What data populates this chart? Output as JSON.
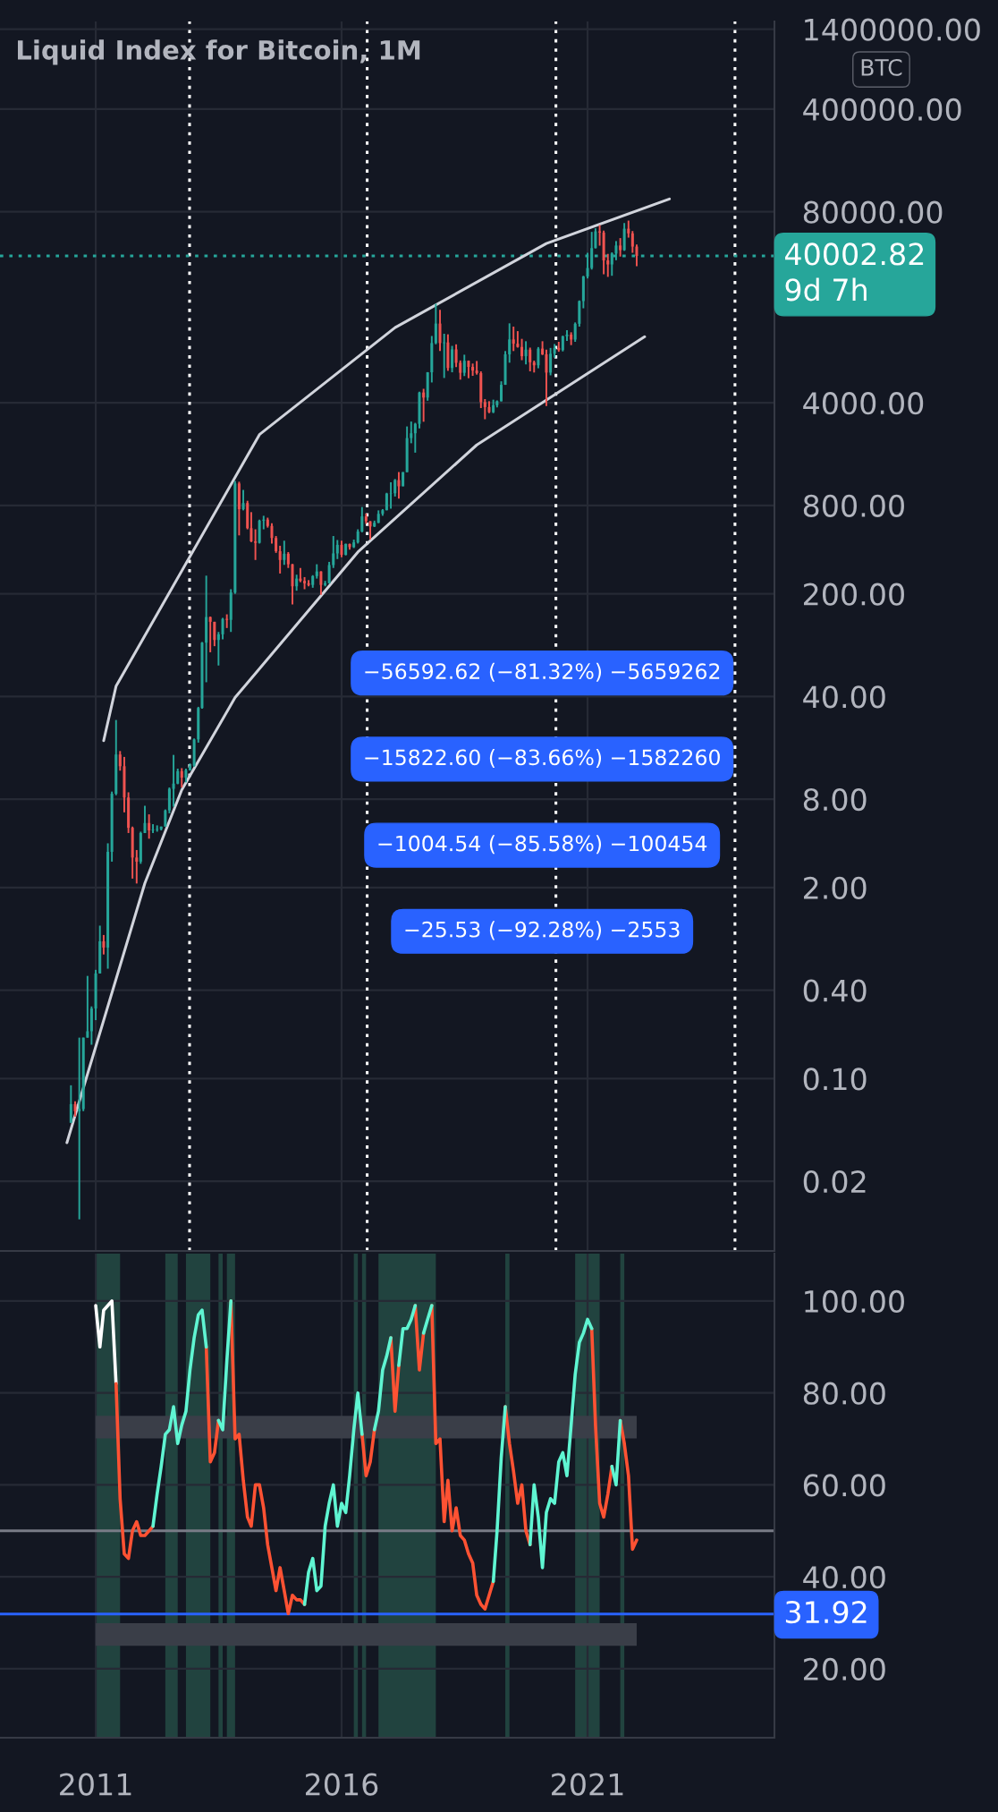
{
  "chart_data": [
    {
      "type": "candlestick",
      "title": "Liquid Index for Bitcoin, 1M",
      "log": true,
      "xlim": [
        "2009-01-20",
        "2024-10-20"
      ],
      "ylim": [
        0.0067,
        1580000
      ],
      "xticks": [
        "2011",
        "2016",
        "2021"
      ],
      "yticks": [
        {
          "value": 0.02,
          "label": "0.02"
        },
        {
          "value": 0.1,
          "label": "0.10"
        },
        {
          "value": 0.4,
          "label": "0.40"
        },
        {
          "value": 2,
          "label": "2.00"
        },
        {
          "value": 8,
          "label": "8.00"
        },
        {
          "value": 40,
          "label": "40.00"
        },
        {
          "value": 200,
          "label": "200.00"
        },
        {
          "value": 800,
          "label": "800.00"
        },
        {
          "value": 4000,
          "label": "4000.00"
        },
        {
          "value": 80000,
          "label": "80000.00"
        },
        {
          "value": 400000,
          "label": "400000.00"
        },
        {
          "value": 1400000,
          "label": "1400000.00"
        }
      ],
      "tick_labels": "y",
      "grid": true,
      "x": [
        "2010-07",
        "2010-08",
        "2010-09",
        "2010-10",
        "2010-11",
        "2010-12",
        "2011-01",
        "2011-02",
        "2011-03",
        "2011-04",
        "2011-05",
        "2011-06",
        "2011-07",
        "2011-08",
        "2011-09",
        "2011-10",
        "2011-11",
        "2011-12",
        "2012-01",
        "2012-02",
        "2012-03",
        "2012-04",
        "2012-05",
        "2012-06",
        "2012-07",
        "2012-08",
        "2012-09",
        "2012-10",
        "2012-11",
        "2012-12",
        "2013-01",
        "2013-02",
        "2013-03",
        "2013-04",
        "2013-05",
        "2013-06",
        "2013-07",
        "2013-08",
        "2013-09",
        "2013-10",
        "2013-11",
        "2013-12",
        "2014-01",
        "2014-02",
        "2014-03",
        "2014-04",
        "2014-05",
        "2014-06",
        "2014-07",
        "2014-08",
        "2014-09",
        "2014-10",
        "2014-11",
        "2014-12",
        "2015-01",
        "2015-02",
        "2015-03",
        "2015-04",
        "2015-05",
        "2015-06",
        "2015-07",
        "2015-08",
        "2015-09",
        "2015-10",
        "2015-11",
        "2015-12",
        "2016-01",
        "2016-02",
        "2016-03",
        "2016-04",
        "2016-05",
        "2016-06",
        "2016-07",
        "2016-08",
        "2016-09",
        "2016-10",
        "2016-11",
        "2016-12",
        "2017-01",
        "2017-02",
        "2017-03",
        "2017-04",
        "2017-05",
        "2017-06",
        "2017-07",
        "2017-08",
        "2017-09",
        "2017-10",
        "2017-11",
        "2017-12",
        "2018-01",
        "2018-02",
        "2018-03",
        "2018-04",
        "2018-05",
        "2018-06",
        "2018-07",
        "2018-08",
        "2018-09",
        "2018-10",
        "2018-11",
        "2018-12",
        "2019-01",
        "2019-02",
        "2019-03",
        "2019-04",
        "2019-05",
        "2019-06",
        "2019-07",
        "2019-08",
        "2019-09",
        "2019-10",
        "2019-11",
        "2019-12",
        "2020-01",
        "2020-02",
        "2020-03",
        "2020-04",
        "2020-05",
        "2020-06",
        "2020-07",
        "2020-08",
        "2020-09",
        "2020-10",
        "2020-11",
        "2020-12",
        "2021-01",
        "2021-02",
        "2021-03",
        "2021-04",
        "2021-05",
        "2021-06",
        "2021-07",
        "2021-08",
        "2021-09",
        "2021-10",
        "2021-11",
        "2021-12",
        "2022-01"
      ],
      "ohlc": [
        [
          0.05,
          0.09,
          0.05,
          0.067
        ],
        [
          0.067,
          0.07,
          0.055,
          0.06
        ],
        [
          0.06,
          0.19,
          0.011,
          0.062
        ],
        [
          0.062,
          0.19,
          0.06,
          0.19
        ],
        [
          0.19,
          0.5,
          0.19,
          0.21
        ],
        [
          0.21,
          0.31,
          0.17,
          0.3
        ],
        [
          0.3,
          0.55,
          0.25,
          0.52
        ],
        [
          0.52,
          1.1,
          0.52,
          0.86
        ],
        [
          0.86,
          0.95,
          0.7,
          0.78
        ],
        [
          0.78,
          4,
          0.56,
          3.5
        ],
        [
          3.5,
          9,
          3,
          8.7
        ],
        [
          8.7,
          27.66,
          8.5,
          16.1
        ],
        [
          16.1,
          17,
          12.5,
          13.4
        ],
        [
          13.4,
          15.5,
          6.5,
          8.2
        ],
        [
          8.2,
          8.9,
          4.7,
          5.1
        ],
        [
          5.1,
          5.2,
          2.3,
          3.2
        ],
        [
          3.2,
          3.6,
          2.13,
          3
        ],
        [
          3,
          4.8,
          2.9,
          4.7
        ],
        [
          4.7,
          7.2,
          4.7,
          5.5
        ],
        [
          5.5,
          6.3,
          4.3,
          4.9
        ],
        [
          4.9,
          5.4,
          4.7,
          4.95
        ],
        [
          4.95,
          5.3,
          4.8,
          5
        ],
        [
          5,
          5.2,
          4.9,
          5.2
        ],
        [
          5.2,
          6.8,
          5.2,
          6.7
        ],
        [
          6.7,
          9.6,
          6.4,
          9.4
        ],
        [
          9.4,
          16,
          7.1,
          10.2
        ],
        [
          10.2,
          12.9,
          10.1,
          12.4
        ],
        [
          12.4,
          13,
          9.6,
          11.2
        ],
        [
          11.2,
          12.9,
          10.4,
          12.6
        ],
        [
          12.6,
          14,
          12.5,
          13.5
        ],
        [
          13.5,
          20.7,
          13.3,
          20.4
        ],
        [
          20.4,
          34,
          19.4,
          33.4
        ],
        [
          33.4,
          94,
          33,
          93
        ],
        [
          93,
          266,
          50,
          139
        ],
        [
          139,
          140,
          80,
          129
        ],
        [
          129,
          129,
          88,
          97
        ],
        [
          97,
          110,
          65,
          106
        ],
        [
          106,
          137,
          98,
          135
        ],
        [
          135,
          145,
          117,
          133
        ],
        [
          133,
          215,
          110,
          204
        ],
        [
          204,
          1173.8,
          200,
          1128
        ],
        [
          1128,
          1160,
          500,
          754
        ],
        [
          754,
          1020,
          740,
          830
        ],
        [
          830,
          860,
          550,
          560
        ],
        [
          560,
          720,
          450,
          455
        ],
        [
          455,
          550,
          340,
          445
        ],
        [
          445,
          640,
          440,
          630
        ],
        [
          630,
          680,
          550,
          640
        ],
        [
          640,
          660,
          565,
          580
        ],
        [
          580,
          605,
          440,
          480
        ],
        [
          480,
          495,
          380,
          390
        ],
        [
          390,
          425,
          275,
          340
        ],
        [
          340,
          460,
          315,
          375
        ],
        [
          375,
          385,
          300,
          318
        ],
        [
          318,
          320,
          169.3,
          225
        ],
        [
          225,
          270,
          210,
          254
        ],
        [
          254,
          300,
          240,
          245
        ],
        [
          245,
          260,
          215,
          236
        ],
        [
          236,
          248,
          225,
          230
        ],
        [
          230,
          268,
          220,
          264
        ],
        [
          264,
          318,
          254,
          284
        ],
        [
          284,
          285,
          197,
          230
        ],
        [
          230,
          245,
          225,
          236
        ],
        [
          236,
          330,
          235,
          314
        ],
        [
          314,
          495,
          300,
          377
        ],
        [
          377,
          465,
          345,
          431
        ],
        [
          431,
          460,
          355,
          369
        ],
        [
          369,
          440,
          365,
          437
        ],
        [
          437,
          440,
          400,
          416
        ],
        [
          416,
          468,
          410,
          448
        ],
        [
          448,
          550,
          440,
          531
        ],
        [
          531,
          780,
          525,
          673
        ],
        [
          673,
          705,
          600,
          624
        ],
        [
          624,
          625,
          470,
          575
        ],
        [
          575,
          630,
          570,
          609
        ],
        [
          609,
          740,
          606,
          701
        ],
        [
          701,
          755,
          680,
          742
        ],
        [
          742,
          975,
          740,
          963
        ],
        [
          963,
          1150,
          760,
          968
        ],
        [
          968,
          1210,
          920,
          1190
        ],
        [
          1190,
          1350,
          890,
          1080
        ],
        [
          1080,
          1350,
          1080,
          1348
        ],
        [
          1348,
          2760,
          1348,
          2300
        ],
        [
          2300,
          2980,
          2120,
          2480
        ],
        [
          2480,
          2920,
          1830,
          2875
        ],
        [
          2875,
          4760,
          2680,
          4700
        ],
        [
          4700,
          4980,
          2970,
          4340
        ],
        [
          4340,
          6470,
          4130,
          6450
        ],
        [
          6450,
          11400,
          5500,
          10200
        ],
        [
          10200,
          18913,
          10000,
          13850
        ],
        [
          13850,
          17200,
          9000,
          10200
        ],
        [
          10200,
          11800,
          5900,
          10300
        ],
        [
          10300,
          11700,
          6600,
          6900
        ],
        [
          6900,
          9760,
          6450,
          9240
        ],
        [
          9240,
          10000,
          7000,
          7490
        ],
        [
          7490,
          7770,
          5750,
          6400
        ],
        [
          6400,
          8500,
          6080,
          7730
        ],
        [
          7730,
          7760,
          5880,
          7020
        ],
        [
          7020,
          7400,
          6100,
          6630
        ],
        [
          6630,
          7700,
          6220,
          6370
        ],
        [
          6370,
          6550,
          3680,
          4040
        ],
        [
          4040,
          4240,
          3090,
          3740
        ],
        [
          3740,
          4100,
          3400,
          3450
        ],
        [
          3450,
          4200,
          3400,
          3850
        ],
        [
          3850,
          4150,
          3720,
          4100
        ],
        [
          4100,
          5600,
          4080,
          5300
        ],
        [
          5300,
          9000,
          5300,
          8550
        ],
        [
          8550,
          13900,
          7500,
          10800
        ],
        [
          10800,
          13200,
          9000,
          10100
        ],
        [
          10100,
          12300,
          9500,
          9600
        ],
        [
          9600,
          10900,
          7800,
          8300
        ],
        [
          8300,
          10500,
          7300,
          9200
        ],
        [
          9200,
          9500,
          6550,
          7550
        ],
        [
          7550,
          7750,
          6430,
          7200
        ],
        [
          7200,
          9580,
          6870,
          9350
        ],
        [
          9350,
          10500,
          8450,
          8550
        ],
        [
          8550,
          9200,
          3800,
          6420
        ],
        [
          6420,
          9450,
          6150,
          8630
        ],
        [
          8630,
          10050,
          8120,
          9450
        ],
        [
          9450,
          10400,
          8900,
          9140
        ],
        [
          9140,
          11450,
          8950,
          11350
        ],
        [
          11350,
          12470,
          10550,
          11650
        ],
        [
          11650,
          12080,
          9880,
          10780
        ],
        [
          10780,
          14100,
          10400,
          13800
        ],
        [
          13800,
          19900,
          13200,
          19700
        ],
        [
          19700,
          29300,
          17600,
          28950
        ],
        [
          28950,
          42000,
          28100,
          33100
        ],
        [
          33100,
          58300,
          32300,
          45200
        ],
        [
          45200,
          61700,
          45000,
          58800
        ],
        [
          58800,
          64900,
          47000,
          57700
        ],
        [
          57700,
          59500,
          30000,
          37300
        ],
        [
          37300,
          41300,
          28800,
          35000
        ],
        [
          35000,
          42300,
          29300,
          41500
        ],
        [
          41500,
          50500,
          37400,
          47100
        ],
        [
          47100,
          52900,
          39600,
          43800
        ],
        [
          43800,
          67000,
          43300,
          61300
        ],
        [
          61300,
          69592,
          53300,
          57000
        ],
        [
          57000,
          59100,
          42000,
          46300
        ],
        [
          46300,
          47900,
          34000,
          40002.82
        ]
      ],
      "series": [
        {
          "type": "line",
          "color": "#d1d4dc",
          "x": [
            "2011-03",
            "2011-06",
            "2014-05",
            "2017-02",
            "2020-03",
            "2022-09"
          ],
          "values": [
            20,
            47,
            2430,
            13000,
            48600,
            97700
          ]
        },
        {
          "type": "line",
          "color": "#d1d4dc",
          "x": [
            "2010-06",
            "2012-01",
            "2012-10",
            "2013-11",
            "2016-05",
            "2018-10",
            "2022-03"
          ],
          "values": [
            0.0366,
            2.14,
            9.25,
            39.3,
            385,
            2065,
            11270
          ]
        }
      ],
      "ref_lines": [
        {
          "axis": "x",
          "value": "2012-11-28",
          "color": "#ffffff",
          "line_style": "dotted"
        },
        {
          "axis": "x",
          "value": "2016-07-09",
          "color": "#ffffff",
          "line_style": "dotted"
        },
        {
          "axis": "x",
          "value": "2020-05-11",
          "color": "#ffffff",
          "line_style": "dotted"
        },
        {
          "axis": "x",
          "value": "2024-01",
          "color": "#ffffff",
          "line_style": "dotted"
        },
        {
          "axis": "y",
          "value": 40002.82,
          "label": "40002.82\n9d 7h",
          "color": "#26a69a",
          "line_style": "dotted"
        }
      ],
      "annotations": [
        "BTC",
        "−56592.62 (−81.32%) −5659262",
        "−15822.60 (−83.66%) −1582260",
        "−1004.54 (−85.58%) −100454",
        "−25.53 (−92.28%) −2553"
      ]
    },
    {
      "type": "line",
      "xlim": [
        "2009-01-20",
        "2024-10-20"
      ],
      "ylim": [
        5,
        110.3
      ],
      "xticks": [
        "2011",
        "2016",
        "2021"
      ],
      "yticks": [
        {
          "value": 20,
          "label": "20.00"
        },
        {
          "value": 40,
          "label": "40.00"
        },
        {
          "value": 60,
          "label": "60.00"
        },
        {
          "value": 80,
          "label": "80.00"
        },
        {
          "value": 100,
          "label": "100.00"
        }
      ],
      "grid": true,
      "x": [
        "2011-01",
        "2011-02",
        "2011-03",
        "2011-04",
        "2011-05",
        "2011-06",
        "2011-07",
        "2011-08",
        "2011-09",
        "2011-10",
        "2011-11",
        "2011-12",
        "2012-01",
        "2012-02",
        "2012-03",
        "2012-04",
        "2012-05",
        "2012-06",
        "2012-07",
        "2012-08",
        "2012-09",
        "2012-10",
        "2012-11",
        "2012-12",
        "2013-01",
        "2013-02",
        "2013-03",
        "2013-04",
        "2013-05",
        "2013-06",
        "2013-07",
        "2013-08",
        "2013-09",
        "2013-10",
        "2013-11",
        "2013-12",
        "2014-01",
        "2014-02",
        "2014-03",
        "2014-04",
        "2014-05",
        "2014-06",
        "2014-07",
        "2014-08",
        "2014-09",
        "2014-10",
        "2014-11",
        "2014-12",
        "2015-01",
        "2015-02",
        "2015-03",
        "2015-04",
        "2015-05",
        "2015-06",
        "2015-07",
        "2015-08",
        "2015-09",
        "2015-10",
        "2015-11",
        "2015-12",
        "2016-01",
        "2016-02",
        "2016-03",
        "2016-04",
        "2016-05",
        "2016-06",
        "2016-07",
        "2016-08",
        "2016-09",
        "2016-10",
        "2016-11",
        "2016-12",
        "2017-01",
        "2017-02",
        "2017-03",
        "2017-04",
        "2017-05",
        "2017-06",
        "2017-07",
        "2017-08",
        "2017-09",
        "2017-10",
        "2017-11",
        "2017-12",
        "2018-01",
        "2018-02",
        "2018-03",
        "2018-04",
        "2018-05",
        "2018-06",
        "2018-07",
        "2018-08",
        "2018-09",
        "2018-10",
        "2018-11",
        "2018-12",
        "2019-01",
        "2019-02",
        "2019-03",
        "2019-04",
        "2019-05",
        "2019-06",
        "2019-07",
        "2019-08",
        "2019-09",
        "2019-10",
        "2019-11",
        "2019-12",
        "2020-01",
        "2020-02",
        "2020-03",
        "2020-04",
        "2020-05",
        "2020-06",
        "2020-07",
        "2020-08",
        "2020-09",
        "2020-10",
        "2020-11",
        "2020-12",
        "2021-01",
        "2021-02",
        "2021-03",
        "2021-04",
        "2021-05",
        "2021-06",
        "2021-07",
        "2021-08",
        "2021-09",
        "2021-10",
        "2021-11",
        "2021-12",
        "2022-01"
      ],
      "series": [
        {
          "color": "#ffffff",
          "values": [
            99,
            90,
            98,
            99,
            100,
            82,
            null,
            null,
            null,
            null,
            null,
            null,
            null,
            null,
            null,
            null,
            null,
            null,
            null,
            null,
            null,
            null,
            null,
            null,
            null,
            null,
            null,
            null,
            null,
            null,
            null,
            null,
            null,
            null,
            null,
            null,
            null,
            null,
            null,
            null,
            null,
            null,
            null,
            null,
            null,
            null,
            null,
            null,
            null,
            null,
            null,
            null,
            null,
            null,
            null,
            null,
            null,
            null,
            null,
            null,
            null,
            null,
            null,
            null,
            null,
            null,
            null,
            null,
            null,
            null,
            null,
            null,
            null,
            null,
            null,
            null,
            null,
            null,
            null,
            null,
            null,
            null,
            null,
            null,
            null,
            null,
            null,
            null,
            null,
            null,
            null,
            null,
            null,
            null,
            null,
            null,
            null,
            null,
            null,
            null,
            null,
            null,
            null,
            null,
            null,
            null,
            null,
            null,
            null,
            null,
            null,
            null,
            null,
            null,
            null,
            null,
            null,
            null,
            null,
            null,
            null,
            null,
            null,
            null,
            null,
            null,
            null,
            null,
            null,
            null,
            null,
            null,
            null
          ]
        },
        {
          "color": "#ff5233",
          "values": [
            null,
            null,
            null,
            null,
            null,
            82,
            57,
            45,
            44,
            50,
            52,
            49,
            49,
            50,
            51,
            null,
            null,
            null,
            null,
            null,
            null,
            null,
            null,
            null,
            null,
            null,
            null,
            90,
            65,
            67,
            74,
            null,
            null,
            100,
            70,
            71,
            61,
            53,
            51,
            60,
            60,
            55,
            47,
            42,
            37,
            42,
            37,
            32,
            36,
            35,
            35,
            34,
            null,
            null,
            null,
            null,
            null,
            null,
            null,
            null,
            null,
            null,
            null,
            null,
            null,
            71,
            62,
            65,
            72,
            null,
            null,
            null,
            92,
            76,
            86,
            null,
            null,
            null,
            99,
            85,
            93,
            null,
            99,
            69,
            70,
            52,
            61,
            50,
            55,
            49,
            48,
            45,
            43,
            36,
            34,
            33,
            36,
            39,
            null,
            null,
            77,
            69,
            63,
            56,
            60,
            50,
            47,
            null,
            null,
            null,
            null,
            null,
            null,
            null,
            null,
            null,
            null,
            null,
            null,
            null,
            null,
            94,
            73,
            56,
            53,
            58,
            64,
            null,
            74,
            69,
            62,
            46,
            48
          ]
        },
        {
          "color": "#5ff5d2",
          "values": [
            null,
            null,
            null,
            null,
            null,
            null,
            null,
            null,
            null,
            null,
            null,
            null,
            null,
            null,
            51,
            58,
            64,
            71,
            72,
            77,
            69,
            73,
            76,
            85,
            92,
            97,
            98,
            90,
            null,
            null,
            74,
            72,
            87,
            100,
            null,
            null,
            null,
            null,
            null,
            null,
            null,
            null,
            null,
            null,
            null,
            null,
            null,
            null,
            null,
            null,
            null,
            34,
            41,
            44,
            37,
            38,
            51,
            56,
            60,
            51,
            56,
            54,
            62,
            72,
            80,
            71,
            null,
            null,
            72,
            76,
            85,
            88,
            92,
            null,
            86,
            94,
            94,
            96,
            99,
            null,
            93,
            96,
            99,
            null,
            null,
            null,
            null,
            null,
            null,
            null,
            null,
            null,
            null,
            null,
            null,
            null,
            null,
            39,
            50,
            66,
            77,
            null,
            null,
            null,
            null,
            null,
            47,
            60,
            53,
            42,
            54,
            57,
            56,
            65,
            67,
            62,
            73,
            84,
            91,
            93,
            96,
            94,
            null,
            null,
            null,
            null,
            64,
            60,
            74,
            null,
            null,
            null,
            null
          ]
        }
      ],
      "ref_lines": [
        {
          "axis": "y",
          "value": 50,
          "color": "#787b86"
        },
        {
          "axis": "y",
          "value": 31.92,
          "label": "31.92",
          "color": "#2962ff"
        }
      ],
      "bands": [
        {
          "axis": "y",
          "from": 70.1,
          "to": 75,
          "color": "#3a3e48"
        },
        {
          "axis": "y",
          "from": 25,
          "to": 29.9,
          "color": "#3a3e48"
        },
        {
          "axis": "x",
          "from": "2011-01",
          "to": "2011-07",
          "color": "#21433f"
        },
        {
          "axis": "x",
          "from": "2012-06",
          "to": "2012-09",
          "color": "#21433f"
        },
        {
          "axis": "x",
          "from": "2012-11",
          "to": "2013-05",
          "color": "#21433f"
        },
        {
          "axis": "x",
          "from": "2013-07",
          "to": "2013-08",
          "color": "#21433f"
        },
        {
          "axis": "x",
          "from": "2013-09",
          "to": "2013-11",
          "color": "#21433f"
        },
        {
          "axis": "x",
          "from": "2016-04",
          "to": "2016-05",
          "color": "#21433f"
        },
        {
          "axis": "x",
          "from": "2016-06",
          "to": "2016-07",
          "color": "#21433f"
        },
        {
          "axis": "x",
          "from": "2016-10",
          "to": "2017-12",
          "color": "#21433f"
        },
        {
          "axis": "x",
          "from": "2019-05",
          "to": "2019-06",
          "color": "#21433f"
        },
        {
          "axis": "x",
          "from": "2020-10",
          "to": "2021-04",
          "color": "#21433f"
        },
        {
          "axis": "x",
          "from": "2021-09",
          "to": "2021-10",
          "color": "#21433f"
        }
      ]
    }
  ]
}
